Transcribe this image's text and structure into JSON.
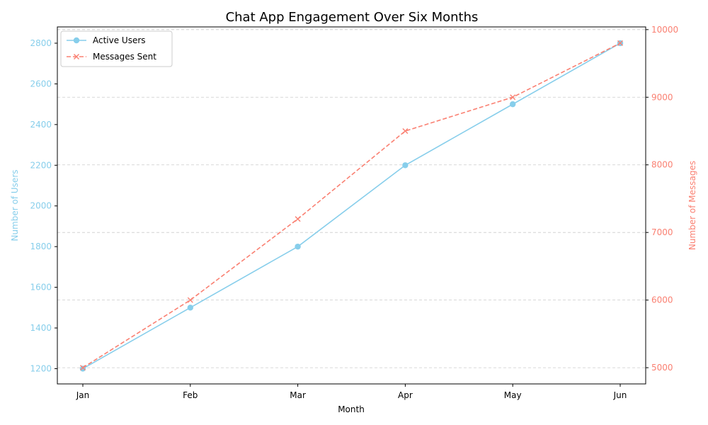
{
  "chart_data": {
    "type": "line",
    "title": "Chat App Engagement Over Six Months",
    "xlabel": "Month",
    "categories": [
      "Jan",
      "Feb",
      "Mar",
      "Apr",
      "May",
      "Jun"
    ],
    "y_left": {
      "label": "Number of Users",
      "range": [
        1125,
        2880
      ],
      "ticks": [
        1200,
        1400,
        1600,
        1800,
        2000,
        2200,
        2400,
        2600,
        2800
      ],
      "color": "#87CEEB"
    },
    "y_right": {
      "label": "Number of Messages",
      "range": [
        4760,
        10040
      ],
      "ticks": [
        5000,
        6000,
        7000,
        8000,
        9000,
        10000
      ],
      "color": "#FA8072"
    },
    "series": [
      {
        "name": "Active Users",
        "axis": "left",
        "values": [
          1200,
          1500,
          1800,
          2200,
          2500,
          2800
        ],
        "color": "#87CEEB",
        "marker": "circle",
        "dash": "solid"
      },
      {
        "name": "Messages Sent",
        "axis": "right",
        "values": [
          5000,
          6000,
          7200,
          8500,
          9000,
          9800
        ],
        "color": "#FA8072",
        "marker": "x",
        "dash": "dashed"
      }
    ],
    "grid": true,
    "legend_position": "top-left"
  }
}
